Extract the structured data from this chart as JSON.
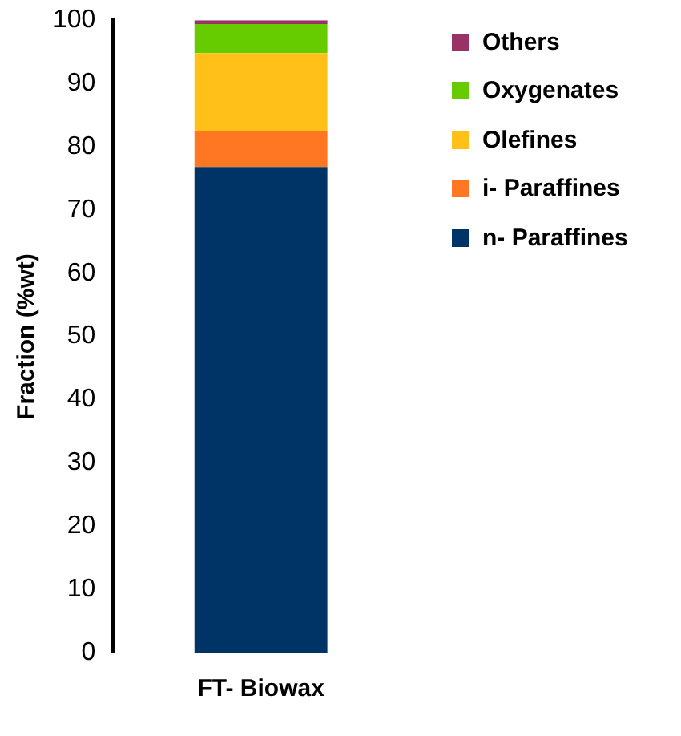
{
  "chart_data": {
    "type": "bar",
    "stacked": true,
    "categories": [
      "FT- Biowax"
    ],
    "ylabel": "Fraction (%wt)",
    "ylim": [
      0,
      100
    ],
    "yticks": [
      0,
      10,
      20,
      30,
      40,
      50,
      60,
      70,
      80,
      90,
      100
    ],
    "grid": false,
    "legend": "top right",
    "series": [
      {
        "name": "n- Paraffines",
        "color": "#003366",
        "values": [
          76.8
        ]
      },
      {
        "name": "i- Paraffines",
        "color": "#ff7722",
        "values": [
          5.7
        ]
      },
      {
        "name": "Olefines",
        "color": "#ffc018",
        "values": [
          12.3
        ]
      },
      {
        "name": "Oxygenates",
        "color": "#66cc00",
        "values": [
          4.6
        ]
      },
      {
        "name": "Others",
        "color": "#993366",
        "values": [
          0.6
        ]
      }
    ]
  }
}
